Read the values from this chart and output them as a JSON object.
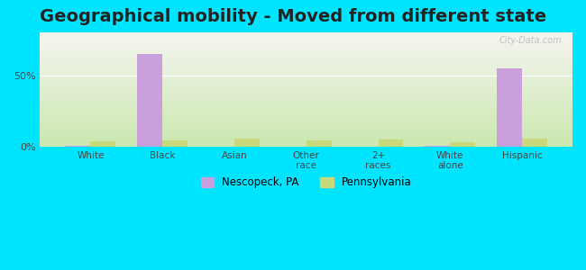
{
  "title": "Geographical mobility - Moved from different state",
  "categories": [
    "White",
    "Black",
    "Asian",
    "Other\nrace",
    "2+\nraces",
    "White\nalone",
    "Hispanic"
  ],
  "nescopeck_values": [
    0.5,
    65.0,
    0.0,
    0.0,
    0.0,
    0.3,
    55.0
  ],
  "pennsylvania_values": [
    3.5,
    4.5,
    5.5,
    4.5,
    5.0,
    3.0,
    5.5
  ],
  "nescopeck_color": "#c9a0dc",
  "pennsylvania_color": "#c8d87a",
  "background_outer": "#00e5ff",
  "background_inner_top": "#ffffff",
  "background_inner_bottom": "#d4e8c2",
  "ylabel_text": "0%\n\n50%",
  "yticks": [
    0,
    50
  ],
  "ytick_labels": [
    "0%",
    "50%"
  ],
  "ymax": 80,
  "bar_width": 0.35,
  "title_fontsize": 14,
  "legend_labels": [
    "Nescopeck, PA",
    "Pennsylvania"
  ],
  "watermark": "City-Data.com"
}
